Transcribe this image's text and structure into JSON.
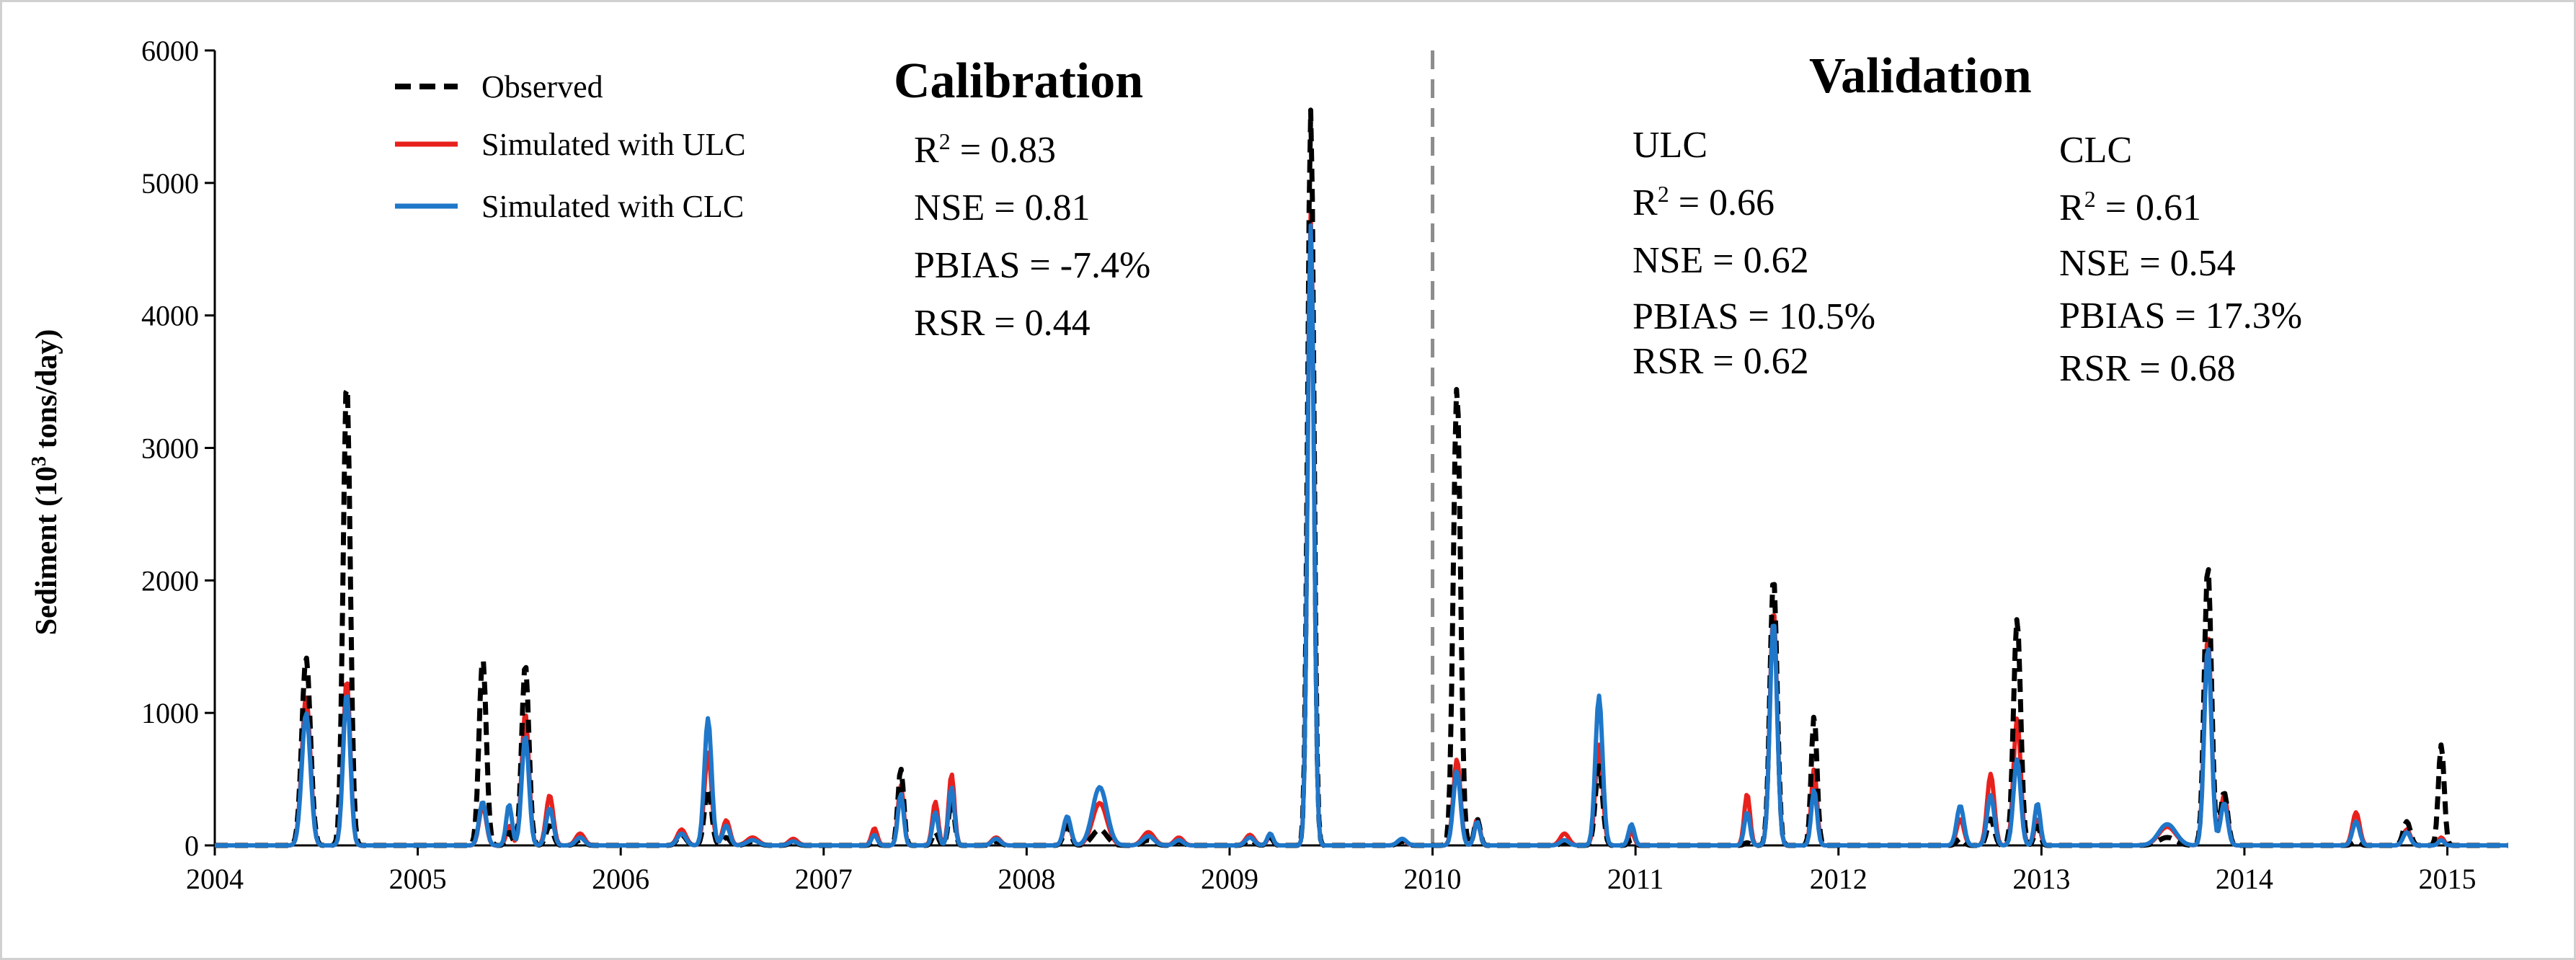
{
  "chart_data": {
    "type": "line",
    "ylabel_prefix": "Sediment (10",
    "ylabel_exp": "3",
    "ylabel_suffix": " tons/day)",
    "ylim": [
      0,
      6000
    ],
    "yticks": [
      "0",
      "1000",
      "2000",
      "3000",
      "4000",
      "5000",
      "6000"
    ],
    "xlim": [
      2004,
      2015.3
    ],
    "xticks": [
      "2004",
      "2005",
      "2006",
      "2007",
      "2008",
      "2009",
      "2010",
      "2011",
      "2012",
      "2013",
      "2014",
      "2015"
    ],
    "divider_x": 2010,
    "colors": {
      "observed": "#000000",
      "ulc": "#e8211d",
      "clc": "#1f77c9",
      "divider": "#8c8c8c"
    },
    "legend": {
      "observed": "Observed",
      "ulc": "Simulated with ULC",
      "clc": "Simulated with CLC"
    },
    "peaks": [
      {
        "t": 2004.45,
        "w": 0.03,
        "obs": 1420,
        "ulc": 1120,
        "clc": 1000
      },
      {
        "t": 2004.65,
        "w": 0.025,
        "obs": 3520,
        "ulc": 1250,
        "clc": 1150
      },
      {
        "t": 2005.32,
        "w": 0.025,
        "obs": 1420,
        "ulc": 300,
        "clc": 330
      },
      {
        "t": 2005.45,
        "w": 0.02,
        "obs": 100,
        "ulc": 150,
        "clc": 310
      },
      {
        "t": 2005.53,
        "w": 0.025,
        "obs": 1370,
        "ulc": 1000,
        "clc": 830
      },
      {
        "t": 2005.65,
        "w": 0.025,
        "obs": 150,
        "ulc": 380,
        "clc": 280
      },
      {
        "t": 2005.8,
        "w": 0.03,
        "obs": 40,
        "ulc": 90,
        "clc": 60
      },
      {
        "t": 2006.3,
        "w": 0.03,
        "obs": 80,
        "ulc": 120,
        "clc": 90
      },
      {
        "t": 2006.43,
        "w": 0.025,
        "obs": 430,
        "ulc": 700,
        "clc": 960
      },
      {
        "t": 2006.52,
        "w": 0.025,
        "obs": 60,
        "ulc": 190,
        "clc": 150
      },
      {
        "t": 2006.65,
        "w": 0.04,
        "obs": 30,
        "ulc": 60,
        "clc": 40
      },
      {
        "t": 2006.85,
        "w": 0.03,
        "obs": 20,
        "ulc": 50,
        "clc": 30
      },
      {
        "t": 2007.25,
        "w": 0.02,
        "obs": 30,
        "ulc": 130,
        "clc": 80
      },
      {
        "t": 2007.38,
        "w": 0.02,
        "obs": 580,
        "ulc": 460,
        "clc": 390
      },
      {
        "t": 2007.55,
        "w": 0.02,
        "obs": 100,
        "ulc": 330,
        "clc": 250
      },
      {
        "t": 2007.63,
        "w": 0.02,
        "obs": 350,
        "ulc": 540,
        "clc": 440
      },
      {
        "t": 2007.85,
        "w": 0.03,
        "obs": 30,
        "ulc": 60,
        "clc": 50
      },
      {
        "t": 2008.2,
        "w": 0.025,
        "obs": 150,
        "ulc": 190,
        "clc": 220
      },
      {
        "t": 2008.36,
        "w": 0.05,
        "obs": 120,
        "ulc": 320,
        "clc": 440
      },
      {
        "t": 2008.6,
        "w": 0.04,
        "obs": 40,
        "ulc": 100,
        "clc": 70
      },
      {
        "t": 2008.75,
        "w": 0.03,
        "obs": 30,
        "ulc": 60,
        "clc": 40
      },
      {
        "t": 2009.1,
        "w": 0.03,
        "obs": 40,
        "ulc": 80,
        "clc": 60
      },
      {
        "t": 2009.2,
        "w": 0.02,
        "obs": 60,
        "ulc": 70,
        "clc": 90
      },
      {
        "t": 2009.4,
        "w": 0.022,
        "obs": 5550,
        "ulc": 4780,
        "clc": 4680
      },
      {
        "t": 2009.85,
        "w": 0.03,
        "obs": 30,
        "ulc": 40,
        "clc": 50
      },
      {
        "t": 2010.12,
        "w": 0.025,
        "obs": 3460,
        "ulc": 650,
        "clc": 560
      },
      {
        "t": 2010.22,
        "w": 0.02,
        "obs": 200,
        "ulc": 200,
        "clc": 180
      },
      {
        "t": 2010.65,
        "w": 0.03,
        "obs": 20,
        "ulc": 90,
        "clc": 40
      },
      {
        "t": 2010.82,
        "w": 0.025,
        "obs": 600,
        "ulc": 760,
        "clc": 1130
      },
      {
        "t": 2010.98,
        "w": 0.02,
        "obs": 40,
        "ulc": 100,
        "clc": 160
      },
      {
        "t": 2011.55,
        "w": 0.02,
        "obs": 20,
        "ulc": 390,
        "clc": 250
      },
      {
        "t": 2011.68,
        "w": 0.025,
        "obs": 2020,
        "ulc": 1780,
        "clc": 1700
      },
      {
        "t": 2011.88,
        "w": 0.02,
        "obs": 980,
        "ulc": 580,
        "clc": 420
      },
      {
        "t": 2012.6,
        "w": 0.025,
        "obs": 50,
        "ulc": 200,
        "clc": 300
      },
      {
        "t": 2012.75,
        "w": 0.025,
        "obs": 200,
        "ulc": 540,
        "clc": 380
      },
      {
        "t": 2012.88,
        "w": 0.025,
        "obs": 1710,
        "ulc": 960,
        "clc": 650
      },
      {
        "t": 2012.98,
        "w": 0.02,
        "obs": 150,
        "ulc": 200,
        "clc": 320
      },
      {
        "t": 2013.62,
        "w": 0.06,
        "obs": 60,
        "ulc": 140,
        "clc": 160
      },
      {
        "t": 2013.82,
        "w": 0.025,
        "obs": 2110,
        "ulc": 1580,
        "clc": 1500
      },
      {
        "t": 2013.9,
        "w": 0.025,
        "obs": 400,
        "ulc": 380,
        "clc": 320
      },
      {
        "t": 2014.55,
        "w": 0.025,
        "obs": 30,
        "ulc": 250,
        "clc": 180
      },
      {
        "t": 2014.8,
        "w": 0.025,
        "obs": 180,
        "ulc": 120,
        "clc": 100
      },
      {
        "t": 2014.97,
        "w": 0.02,
        "obs": 760,
        "ulc": 60,
        "clc": 40
      }
    ]
  },
  "annotations": {
    "calibration_title": "Calibration",
    "validation_title": "Validation",
    "calibration": {
      "r2_prefix": "R",
      "r2_sup": "2",
      "r2_value": " = 0.83",
      "nse": "NSE = 0.81",
      "pbias": "PBIAS = -7.4%",
      "rsr": "RSR = 0.44"
    },
    "validation_ulc": {
      "label": "ULC",
      "r2_prefix": "R",
      "r2_sup": "2",
      "r2_value": " = 0.66",
      "nse": "NSE = 0.62",
      "pbias": "PBIAS = 10.5%",
      "rsr": "RSR = 0.62"
    },
    "validation_clc": {
      "label": "CLC",
      "r2_prefix": "R",
      "r2_sup": "2",
      "r2_value": " = 0.61",
      "nse": "NSE = 0.54",
      "pbias": "PBIAS = 17.3%",
      "rsr": "RSR = 0.68"
    }
  }
}
